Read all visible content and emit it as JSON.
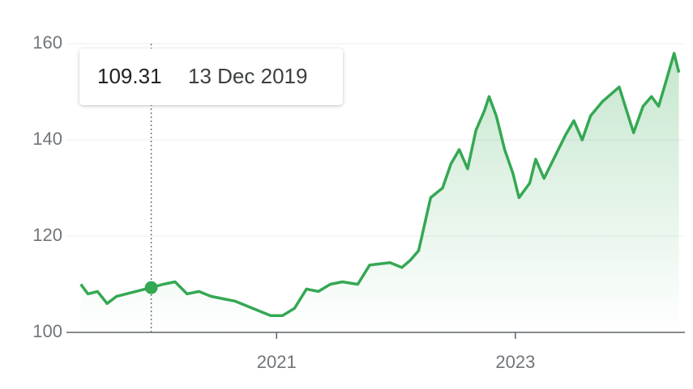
{
  "chart_data": {
    "type": "line",
    "color": "#34a853",
    "x": [
      2019.36,
      2019.42,
      2019.5,
      2019.58,
      2019.66,
      2019.74,
      2019.82,
      2019.95,
      2020.05,
      2020.15,
      2020.25,
      2020.35,
      2020.45,
      2020.55,
      2020.65,
      2020.75,
      2020.85,
      2020.95,
      2021.05,
      2021.15,
      2021.25,
      2021.35,
      2021.45,
      2021.55,
      2021.68,
      2021.78,
      2021.95,
      2022.05,
      2022.12,
      2022.19,
      2022.29,
      2022.39,
      2022.46,
      2022.53,
      2022.6,
      2022.67,
      2022.74,
      2022.78,
      2022.84,
      2022.91,
      2022.98,
      2023.03,
      2023.12,
      2023.17,
      2023.24,
      2023.32,
      2023.42,
      2023.49,
      2023.56,
      2023.63,
      2023.73,
      2023.87,
      2023.92,
      2023.99,
      2024.07,
      2024.14,
      2024.2,
      2024.26,
      2024.33,
      2024.37
    ],
    "values": [
      110,
      108,
      108.5,
      106,
      107.5,
      108,
      108.5,
      109.31,
      110,
      110.5,
      108,
      108.5,
      107.5,
      107,
      106.5,
      105.5,
      104.5,
      103.5,
      103.5,
      105,
      109,
      108.5,
      110,
      110.5,
      110,
      114,
      114.5,
      113.5,
      115,
      117,
      128,
      130,
      135,
      138,
      134,
      142,
      146,
      149,
      145,
      138,
      133,
      128,
      131,
      136,
      132,
      136,
      141,
      144,
      140,
      145,
      148,
      151,
      147,
      141.5,
      147,
      149,
      147,
      152,
      158,
      154
    ],
    "xlim": [
      2019.24,
      2024.42
    ],
    "xticks": [
      2021,
      2023
    ],
    "ylim": [
      100,
      160
    ],
    "yticks": [
      100,
      120,
      140,
      160
    ],
    "grid": true,
    "tooltip": {
      "value": 109.31,
      "date": "13 Dec 2019"
    }
  }
}
